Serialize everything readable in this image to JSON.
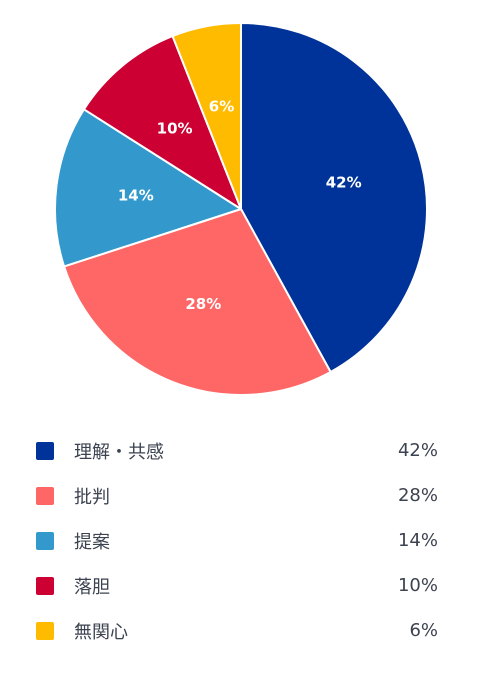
{
  "chart_data": {
    "type": "pie",
    "title": "",
    "legend_position": "bottom",
    "slices": [
      {
        "label": "理解・共感",
        "value": 42,
        "display": "42%",
        "color": "#003399"
      },
      {
        "label": "批判",
        "value": 28,
        "display": "28%",
        "color": "#ff6666"
      },
      {
        "label": "提案",
        "value": 14,
        "display": "14%",
        "color": "#3399cc"
      },
      {
        "label": "落胆",
        "value": 10,
        "display": "10%",
        "color": "#cc0033"
      },
      {
        "label": "無関心",
        "value": 6,
        "display": "6%",
        "color": "#ffbb00"
      }
    ]
  }
}
